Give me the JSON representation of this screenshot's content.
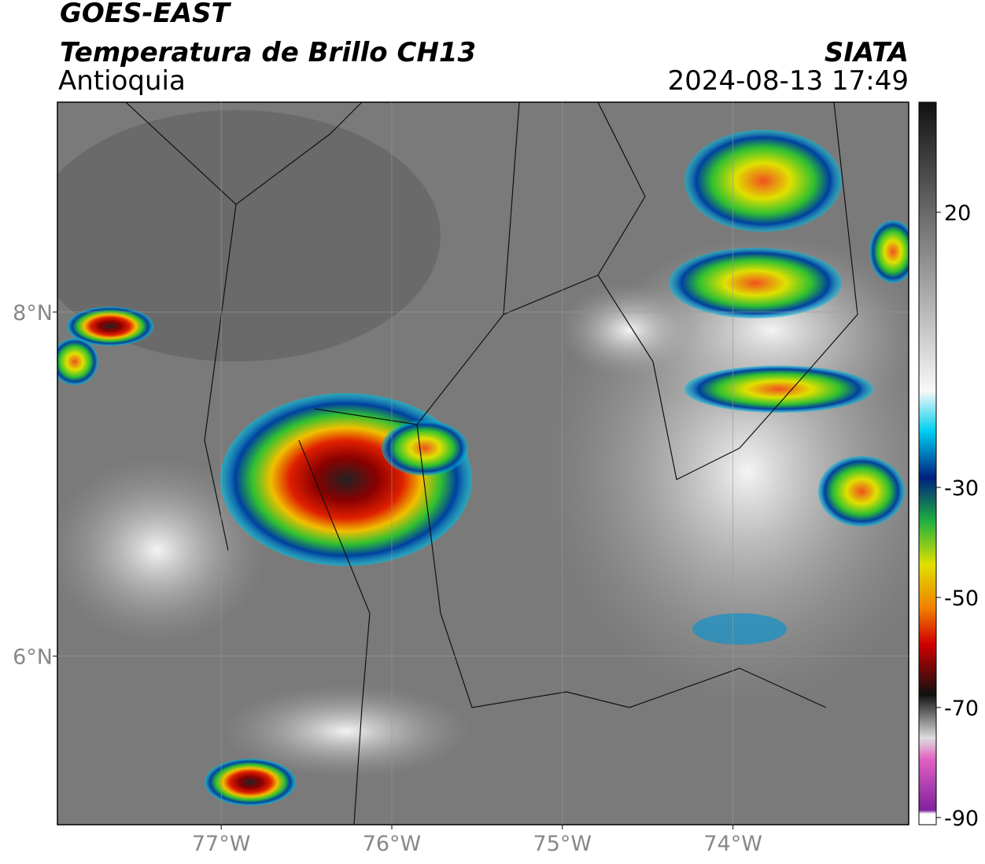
{
  "header": {
    "title": "GOES-EAST",
    "subtitle": "Temperatura de Brillo CH13",
    "region": "Antioquia",
    "source": "SIATA",
    "datetime": "2024-08-13 17:49"
  },
  "map": {
    "xlim": [
      -77.96,
      -72.97
    ],
    "ylim": [
      5.02,
      9.22
    ],
    "xticks": [
      {
        "value": -77,
        "label": "77°W"
      },
      {
        "value": -76,
        "label": "76°W"
      },
      {
        "value": -75,
        "label": "75°W"
      },
      {
        "value": -74,
        "label": "74°W"
      }
    ],
    "yticks": [
      {
        "value": 8,
        "label": "8°N"
      },
      {
        "value": 6,
        "label": "6°N"
      }
    ]
  },
  "colorbar": {
    "lim": [
      -91.3,
      40
    ],
    "ticks": [
      20,
      -30,
      -50,
      -70,
      -90
    ]
  }
}
